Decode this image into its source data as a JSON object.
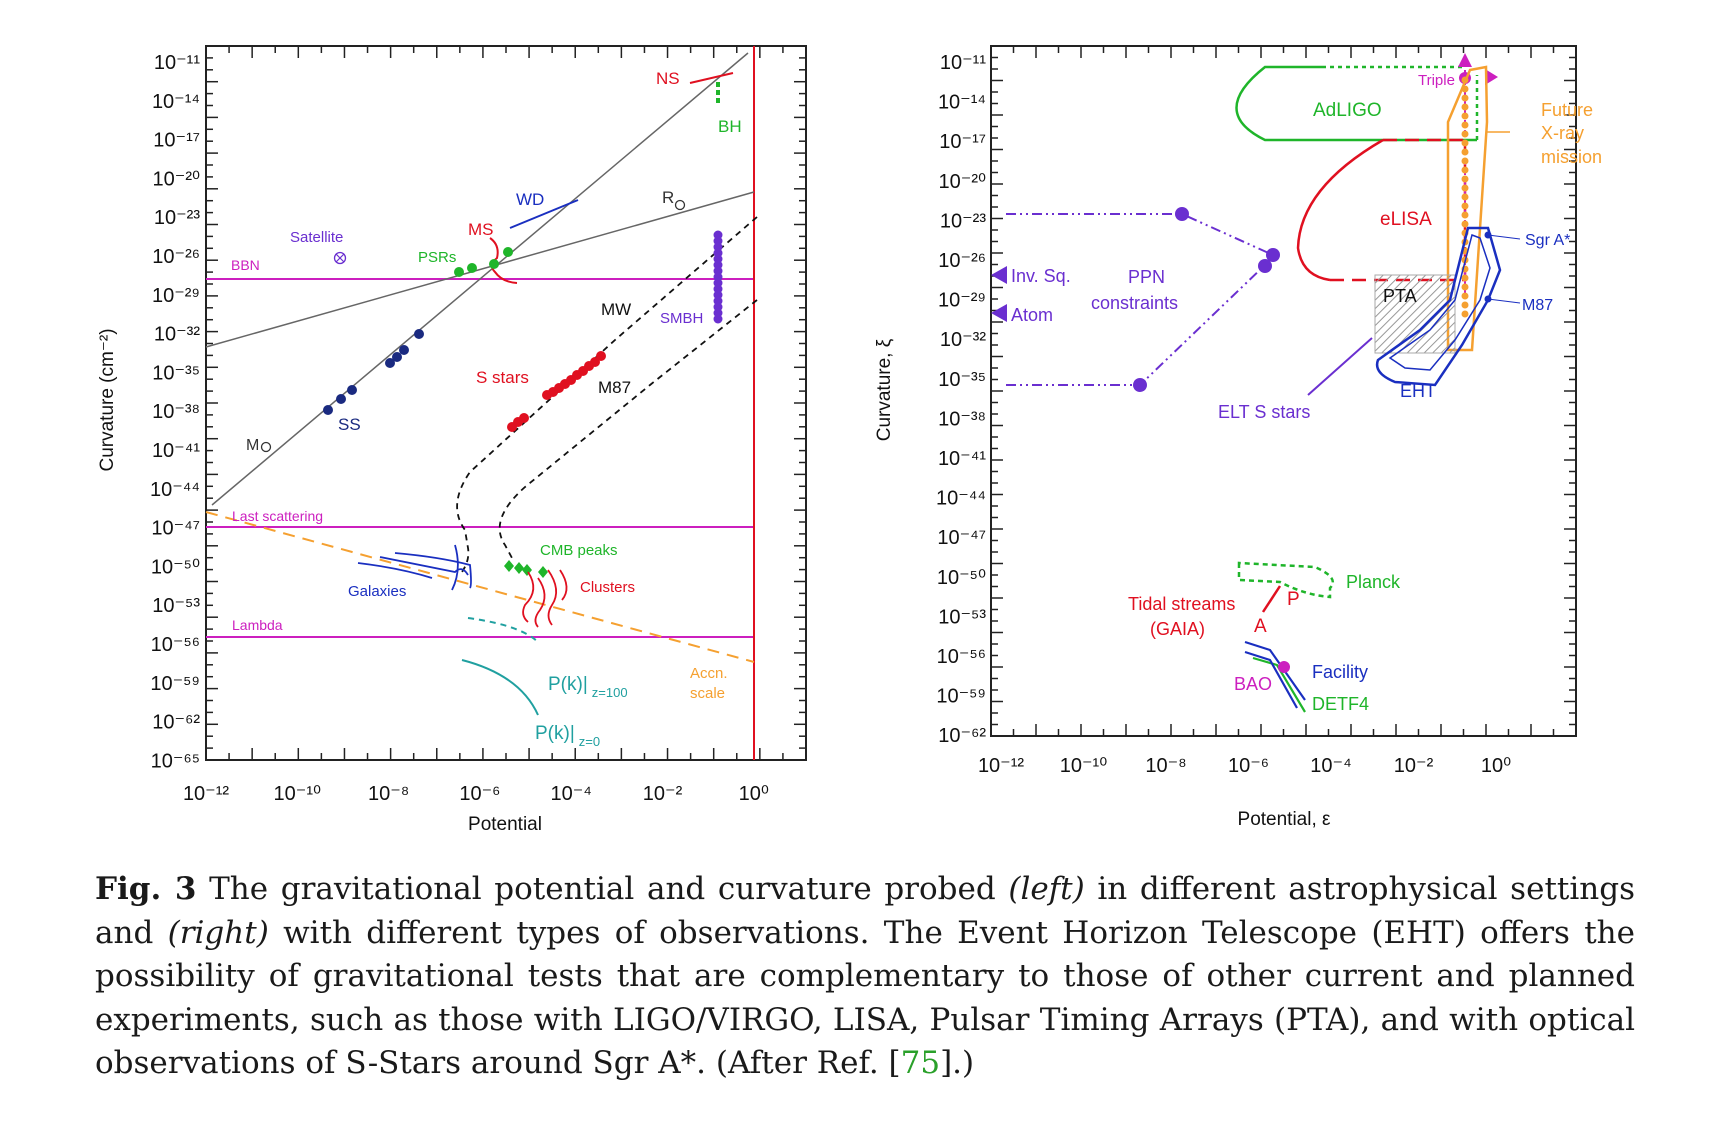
{
  "left_panel": {
    "xlabel": "Potential",
    "ylabel": "Curvature (cm⁻²)",
    "x_ticks": [
      "10⁻¹²",
      "10⁻¹⁰",
      "10⁻⁸",
      "10⁻⁶",
      "10⁻⁴",
      "10⁻²",
      "10⁰"
    ],
    "y_ticks": [
      "10⁻¹¹",
      "10⁻¹⁴",
      "10⁻¹⁷",
      "10⁻²⁰",
      "10⁻²³",
      "10⁻²⁶",
      "10⁻²⁹",
      "10⁻³²",
      "10⁻³⁵",
      "10⁻³⁸",
      "10⁻⁴¹",
      "10⁻⁴⁴",
      "10⁻⁴⁷",
      "10⁻⁵⁰",
      "10⁻⁵³",
      "10⁻⁵⁶",
      "10⁻⁵⁹",
      "10⁻⁶²",
      "10⁻⁶⁵"
    ],
    "labels": {
      "ns": "NS",
      "bh": "BH",
      "wd": "WD",
      "r_sun": "R",
      "ms": "MS",
      "satellite": "Satellite",
      "psrs": "PSRs",
      "bbn": "BBN",
      "smbh": "SMBH",
      "mw": "MW",
      "s_stars": "S stars",
      "m87": "M87",
      "ss": "SS",
      "m_sun": "M",
      "last_scattering": "Last scattering",
      "cmb_peaks": "CMB peaks",
      "clusters": "Clusters",
      "galaxies": "Galaxies",
      "lambda": "Lambda",
      "pk100": "P(k)|",
      "pk100_sub": "z=100",
      "pk0": "P(k)|",
      "pk0_sub": "z=0",
      "accn": "Accn.",
      "scale": "scale"
    }
  },
  "right_panel": {
    "xlabel": "Potential, ε",
    "ylabel": "Curvature, ξ",
    "x_ticks": [
      "10⁻¹²",
      "10⁻¹⁰",
      "10⁻⁸",
      "10⁻⁶",
      "10⁻⁴",
      "10⁻²",
      "10⁰"
    ],
    "y_ticks": [
      "10⁻¹¹",
      "10⁻¹⁴",
      "10⁻¹⁷",
      "10⁻²⁰",
      "10⁻²³",
      "10⁻²⁶",
      "10⁻²⁹",
      "10⁻³²",
      "10⁻³⁵",
      "10⁻³⁸",
      "10⁻⁴¹",
      "10⁻⁴⁴",
      "10⁻⁴⁷",
      "10⁻⁵⁰",
      "10⁻⁵³",
      "10⁻⁵⁶",
      "10⁻⁵⁹",
      "10⁻⁶²"
    ],
    "labels": {
      "triple": "Triple",
      "adligo": "AdLIGO",
      "future1": "Future",
      "future2": "X-ray",
      "future3": "mission",
      "elisa": "eLISA",
      "sgra": "Sgr A*",
      "inv_sq": "Inv. Sq.",
      "ppn1": "PPN",
      "ppn2": "constraints",
      "atom": "Atom",
      "pta": "PTA",
      "m87": "M87",
      "eht": "EHT",
      "elt": "ELT S stars",
      "planck": "Planck",
      "tidal1": "Tidal streams",
      "tidal2": "(GAIA)",
      "p": "P",
      "a": "A",
      "facility": "Facility",
      "bao": "BAO",
      "detf4": "DETF4"
    }
  },
  "caption": {
    "fig_label": "Fig. 3",
    "t1": " The gravitational potential and curvature probed ",
    "left": "(left)",
    "t2": " in different astrophysical settings and ",
    "right": "(right)",
    "t3": " with different types of observations. The Event Horizon Telescope (EHT) offers the possibility of gravitational tests that are complementary to those of other current and planned experiments, such as those with LIGO/VIRGO, LISA, Pulsar Timing Arrays (PTA), and with optical observations of S-Stars around Sgr A*. (After Ref. [",
    "ref": "75",
    "t4": "].)"
  },
  "colors": {
    "magenta": "#cc1fbf",
    "red": "#e01020",
    "blue": "#1a2fc0",
    "navy": "#1a2a80",
    "green": "#1fb52a",
    "purple": "#6a2fd0",
    "teal": "#20a0a0",
    "orange": "#f5a030",
    "gray": "#666666"
  }
}
